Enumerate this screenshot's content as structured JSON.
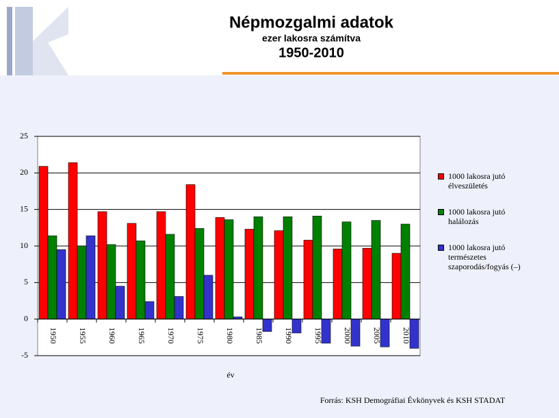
{
  "chart_data": {
    "type": "bar",
    "title": "Népmozgalmi adatok",
    "subtitle": "ezer lakosra számítva",
    "period": "1950-2010",
    "x_label": "év",
    "source": "Forrás: KSH Demográfiai Évkönyvek és KSH STADAT",
    "categories": [
      "1950",
      "1955",
      "1960",
      "1965",
      "1970",
      "1975",
      "1980",
      "1985",
      "1990",
      "1995",
      "2000",
      "2005",
      "2010"
    ],
    "series": [
      {
        "name": "1000 lakosra jutó élveszületés",
        "color": "#ff0000",
        "values": [
          20.9,
          21.4,
          14.7,
          13.1,
          14.7,
          18.4,
          13.9,
          12.3,
          12.1,
          10.8,
          9.6,
          9.7,
          9.0
        ]
      },
      {
        "name": "1000 lakosra jutó halálozás",
        "color": "#008000",
        "values": [
          11.4,
          10.0,
          10.2,
          10.7,
          11.6,
          12.4,
          13.6,
          14.0,
          14.0,
          14.1,
          13.3,
          13.5,
          13.0
        ]
      },
      {
        "name": "1000 lakosra jutó természetes szaporodás/fogyás (–)",
        "color": "#3333cc",
        "values": [
          9.5,
          11.4,
          4.5,
          2.4,
          3.1,
          6.0,
          0.3,
          -1.7,
          -1.9,
          -3.3,
          -3.7,
          -3.8,
          -4.0
        ]
      }
    ],
    "ylim": [
      -5,
      25
    ],
    "yticks": [
      -5,
      0,
      5,
      10,
      15,
      20,
      25
    ],
    "grid": true,
    "legend": "right"
  }
}
